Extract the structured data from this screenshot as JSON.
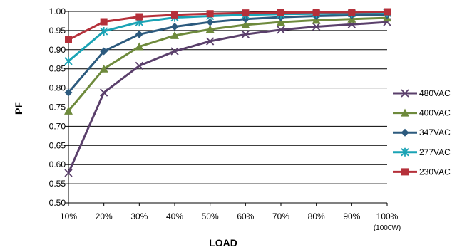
{
  "chart_data": {
    "type": "line",
    "xlabel": "LOAD",
    "ylabel": "PF",
    "categories": [
      "10%",
      "20%",
      "30%",
      "40%",
      "50%",
      "60%",
      "70%",
      "80%",
      "90%",
      "100%"
    ],
    "last_category_sublabel": "(1000W)",
    "ylim": [
      0.5,
      1.0
    ],
    "yticks": [
      "0.50",
      "0.55",
      "0.60",
      "0.65",
      "0.70",
      "0.75",
      "0.80",
      "0.85",
      "0.90",
      "0.95",
      "1.00"
    ],
    "grid": true,
    "legend_position": "right",
    "series": [
      {
        "name": "480VAC",
        "color": "#5a3f6b",
        "marker": "x",
        "values": [
          0.578,
          0.788,
          0.858,
          0.896,
          0.922,
          0.94,
          0.952,
          0.96,
          0.966,
          0.972
        ]
      },
      {
        "name": "400VAC",
        "color": "#6e8a3c",
        "marker": "triangle",
        "values": [
          0.74,
          0.85,
          0.908,
          0.937,
          0.953,
          0.965,
          0.972,
          0.977,
          0.98,
          0.983
        ]
      },
      {
        "name": "347VAC",
        "color": "#2c5a7e",
        "marker": "diamond",
        "values": [
          0.788,
          0.896,
          0.94,
          0.96,
          0.972,
          0.98,
          0.985,
          0.988,
          0.99,
          0.991
        ]
      },
      {
        "name": "277VAC",
        "color": "#1aa3b5",
        "marker": "asterisk",
        "values": [
          0.87,
          0.948,
          0.972,
          0.984,
          0.988,
          0.991,
          0.993,
          0.994,
          0.995,
          0.996
        ]
      },
      {
        "name": "230VAC",
        "color": "#b5303a",
        "marker": "square",
        "values": [
          0.926,
          0.973,
          0.986,
          0.991,
          0.994,
          0.996,
          0.997,
          0.998,
          0.998,
          0.999
        ]
      }
    ]
  }
}
